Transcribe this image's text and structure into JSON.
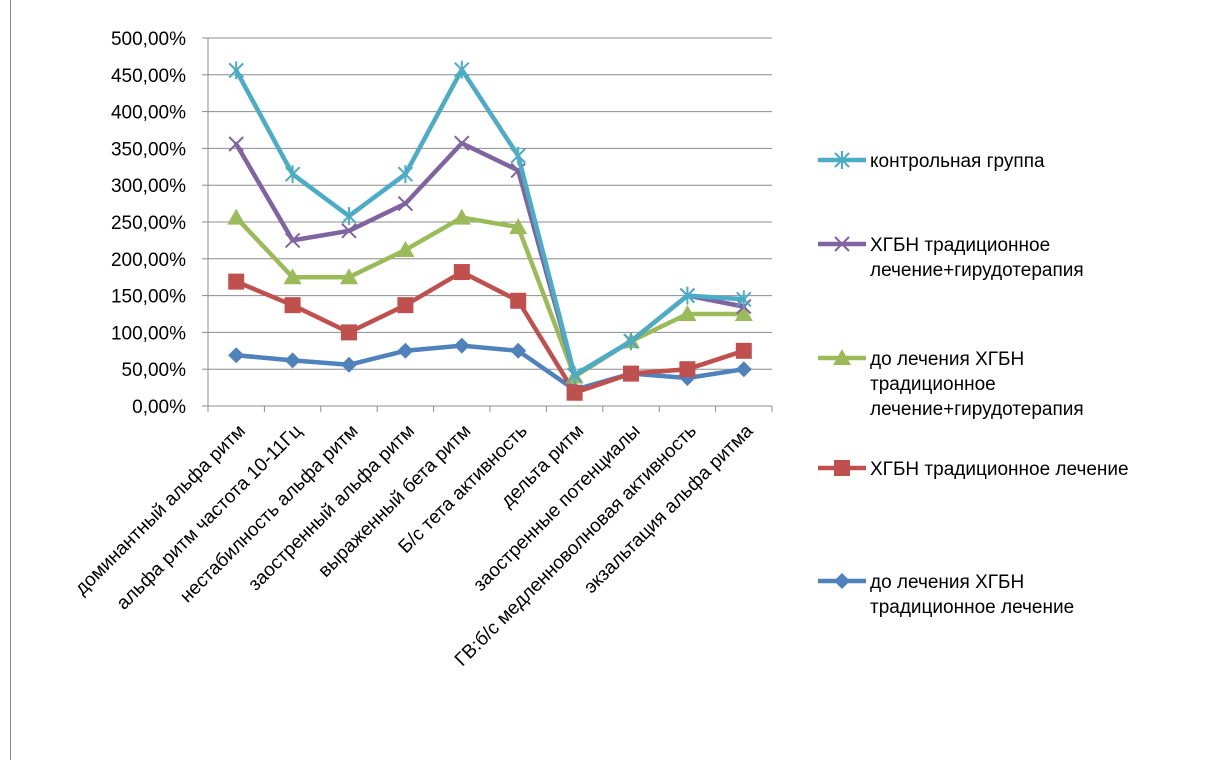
{
  "chart_data": {
    "type": "line",
    "title": "",
    "xlabel": "",
    "ylabel": "",
    "ylim": [
      0,
      500
    ],
    "y_tick_step": 50,
    "y_tick_labels": [
      "0,00%",
      "50,00%",
      "100,00%",
      "150,00%",
      "200,00%",
      "250,00%",
      "300,00%",
      "350,00%",
      "400,00%",
      "450,00%",
      "500,00%"
    ],
    "grid": "horizontal",
    "legend_position": "right",
    "categories": [
      "доминантный альфа ритм",
      "альфа ритм частота 10-11Гц",
      "нестабилность альфа ритм",
      "заостренный альфа ритм",
      "выраженный бета ритм",
      "Б/с тета активность",
      "дельта ритм",
      "заостренные потенциалы",
      "ГВ:б/с медленноволновая активность",
      "экзальтация альфа ритма"
    ],
    "series": [
      {
        "name": "контрольная группа",
        "color": "#4bacc6",
        "marker": "asterisk",
        "values": [
          456,
          315,
          258,
          315,
          457,
          340,
          42,
          88,
          150,
          145
        ]
      },
      {
        "name": "ХГБН традиционное лечение+гирудотерапия",
        "color": "#8064a2",
        "marker": "x",
        "values": [
          356,
          225,
          238,
          275,
          357,
          320,
          42,
          88,
          150,
          135
        ]
      },
      {
        "name": "до лечения ХГБН традиционное лечение+гирудотерапия",
        "color": "#9bbb59",
        "marker": "triangle",
        "values": [
          256,
          175,
          175,
          212,
          256,
          243,
          40,
          88,
          125,
          125
        ]
      },
      {
        "name": "ХГБН традиционное лечение",
        "color": "#c0504d",
        "marker": "square",
        "values": [
          169,
          137,
          100,
          137,
          182,
          143,
          18,
          44,
          50,
          75
        ]
      },
      {
        "name": "до лечения ХГБН традиционное лечение",
        "color": "#4f81bd",
        "marker": "diamond",
        "values": [
          69,
          62,
          56,
          75,
          82,
          75,
          22,
          44,
          38,
          50
        ]
      }
    ],
    "legend_order": [
      0,
      1,
      2,
      3,
      4
    ],
    "legend_lines": [
      [
        "контрольная группа"
      ],
      [
        "ХГБН традиционное",
        "лечение+гирудотерапия"
      ],
      [
        "до лечения ХГБН",
        "традиционное",
        "лечение+гирудотерапия"
      ],
      [
        "ХГБН традиционное лечение"
      ],
      [
        "до лечения ХГБН",
        "традиционное лечение"
      ]
    ]
  }
}
